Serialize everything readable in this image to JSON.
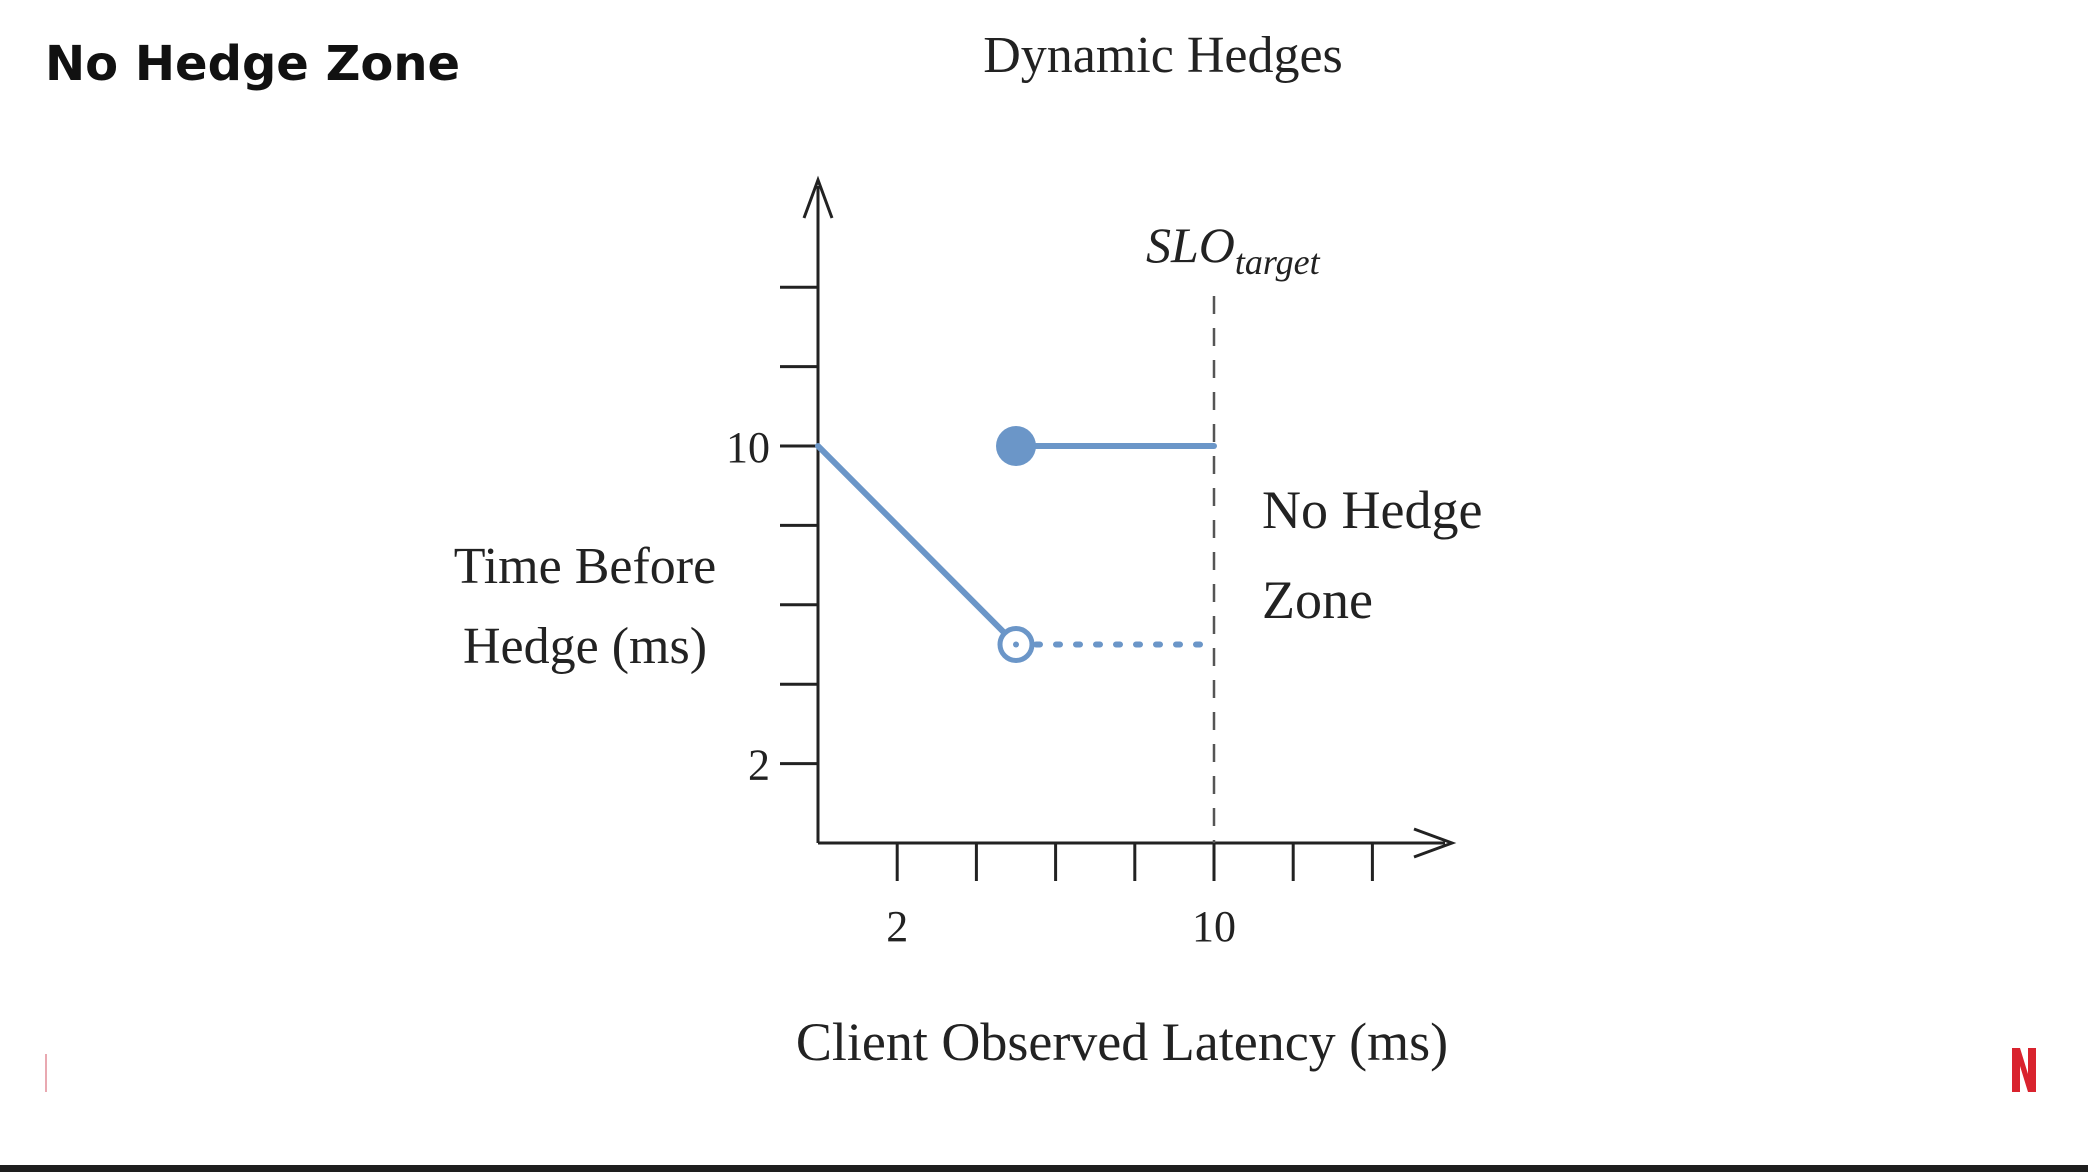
{
  "slide": {
    "title": "No Hedge Zone",
    "logo": "netflix-n-icon",
    "accent_color": "#d9232e"
  },
  "chart_data": {
    "type": "line",
    "title": "Dynamic Hedges",
    "xlabel": "Client Observed Latency (ms)",
    "ylabel_lines": [
      "Time Before",
      "Hedge (ms)"
    ],
    "x_ticks": [
      2,
      4,
      6,
      8,
      10,
      12,
      14
    ],
    "x_tick_labels": {
      "2": "2",
      "10": "10"
    },
    "y_ticks": [
      2,
      4,
      6,
      8,
      10,
      12,
      14
    ],
    "y_tick_labels": {
      "2": "2",
      "10": "10"
    },
    "xlim": [
      0,
      16
    ],
    "ylim": [
      0,
      16
    ],
    "series_color": "#6b96c8",
    "series": [
      {
        "style": "solid",
        "x": [
          0,
          5
        ],
        "y": [
          10,
          5
        ]
      },
      {
        "style": "dotted",
        "x": [
          5,
          10
        ],
        "y": [
          5,
          5
        ]
      },
      {
        "style": "solid",
        "x": [
          5,
          10
        ],
        "y": [
          10,
          10
        ]
      }
    ],
    "points": [
      {
        "x": 5,
        "y": 5,
        "filled": false
      },
      {
        "x": 5,
        "y": 10,
        "filled": true
      }
    ],
    "vline": {
      "x": 10,
      "style": "dashed",
      "label_main": "SLO",
      "label_sub": "target"
    },
    "annotation": {
      "lines": [
        "No Hedge",
        "Zone"
      ]
    }
  }
}
